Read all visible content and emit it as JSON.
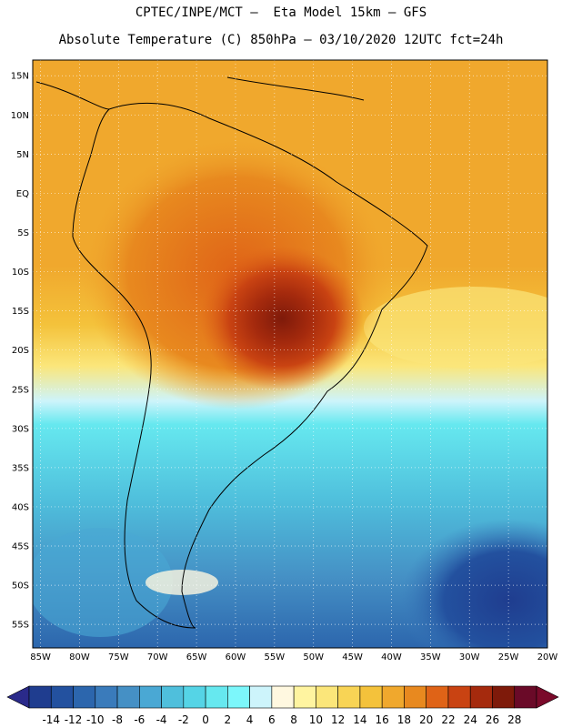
{
  "header": {
    "line1": "CPTEC/INPE/MCT –  Eta Model 15km – GFS",
    "line2": "Absolute Temperature (C) 850hPa – 03/10/2020 12UTC fct=24h"
  },
  "map": {
    "lon_labels": [
      "85W",
      "80W",
      "75W",
      "70W",
      "65W",
      "60W",
      "55W",
      "50W",
      "45W",
      "40W",
      "35W",
      "30W",
      "25W",
      "20W"
    ],
    "lat_labels": [
      "15N",
      "10N",
      "5N",
      "EQ",
      "5S",
      "10S",
      "15S",
      "20S",
      "25S",
      "30S",
      "35S",
      "40S",
      "45S",
      "50S",
      "55S"
    ],
    "lon_range": [
      -86,
      -20
    ],
    "lat_range": [
      17,
      -58
    ],
    "grid": "dotted",
    "coastline_color": "#000000"
  },
  "colorbar": {
    "labels": [
      "-14",
      "-12",
      "-10",
      "-8",
      "-6",
      "-4",
      "-2",
      "0",
      "2",
      "4",
      "6",
      "8",
      "10",
      "12",
      "14",
      "16",
      "18",
      "20",
      "22",
      "24",
      "26",
      "28"
    ],
    "colors": [
      "#1f3d8f",
      "#23519f",
      "#2c66ad",
      "#3a7bbb",
      "#4590c5",
      "#4aa8d4",
      "#4fbfdc",
      "#55d4e6",
      "#66e8ef",
      "#7cf7fb",
      "#cdf4fb",
      "#fff8e0",
      "#fff4a0",
      "#fbe67a",
      "#f8d455",
      "#f4c23b",
      "#f0a82d",
      "#e8891f",
      "#df6317",
      "#c94312",
      "#a52a0d",
      "#7e1a0a",
      "#6a0a28"
    ],
    "left_arrow_color": "#2a2a8a",
    "right_arrow_color": "#7a0a2a"
  }
}
